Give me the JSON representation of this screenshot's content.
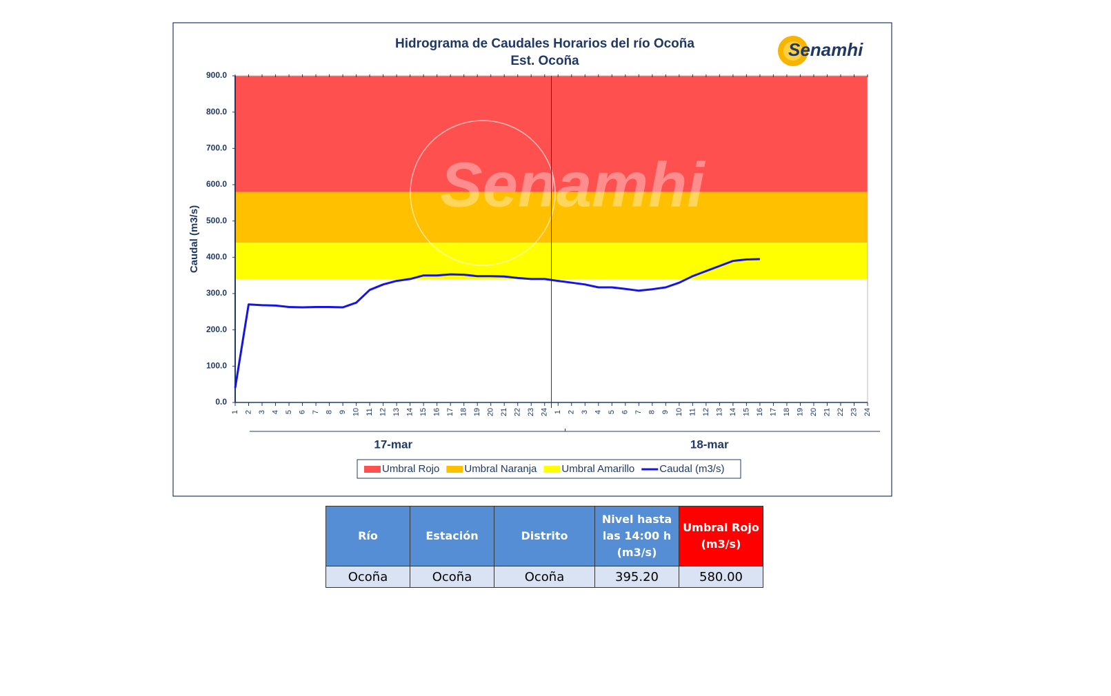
{
  "chart_data": {
    "type": "line",
    "title": "Hidrograma de Caudales Horarios del río Ocoña",
    "subtitle": "Est. Ocoña",
    "logo": "Senamhi",
    "watermark": "Senamhi",
    "ylabel": "Caudal (m3/s)",
    "categories": [
      "1",
      "2",
      "3",
      "4",
      "5",
      "6",
      "7",
      "8",
      "9",
      "10",
      "11",
      "12",
      "13",
      "14",
      "15",
      "16",
      "17",
      "18",
      "19",
      "20",
      "21",
      "22",
      "23",
      "24",
      "1",
      "2",
      "3",
      "4",
      "5",
      "6",
      "7",
      "8",
      "9",
      "10",
      "11",
      "12",
      "13",
      "14",
      "15",
      "16",
      "17",
      "18",
      "19",
      "20",
      "21",
      "22",
      "23",
      "24"
    ],
    "groups": [
      "17-mar",
      "18-mar"
    ],
    "bands": [
      {
        "name": "Umbral Rojo",
        "color": "#ff5050",
        "from": 580,
        "to": 900
      },
      {
        "name": "Umbral Naranja",
        "color": "#ffc000",
        "from": 440,
        "to": 580
      },
      {
        "name": "Umbral Amarillo",
        "color": "#ffff00",
        "from": 340,
        "to": 440
      }
    ],
    "series": [
      {
        "name": "Caudal (m3/s)",
        "color": "#1414e6",
        "values": [
          40,
          270,
          268,
          267,
          263,
          262,
          263,
          263,
          262,
          275,
          310,
          325,
          335,
          340,
          350,
          350,
          353,
          352,
          348,
          348,
          347,
          343,
          340,
          340,
          335,
          330,
          325,
          317,
          317,
          313,
          308,
          312,
          317,
          330,
          348,
          362,
          376,
          390,
          394,
          395,
          null,
          null,
          null,
          null,
          null,
          null,
          null,
          null
        ]
      }
    ],
    "ylim": [
      0,
      900
    ],
    "yticks": [
      {
        "value": 0,
        "label": "0.0"
      },
      {
        "value": 100,
        "label": "100.0"
      },
      {
        "value": 200,
        "label": "200.0"
      },
      {
        "value": 300,
        "label": "300.0"
      },
      {
        "value": 400,
        "label": "400.0"
      },
      {
        "value": 500,
        "label": "500.0"
      },
      {
        "value": 600,
        "label": "600.0"
      },
      {
        "value": 700,
        "label": "700.0"
      },
      {
        "value": 800,
        "label": "800.0"
      },
      {
        "value": 900,
        "label": "900.0"
      }
    ],
    "grid": false,
    "legend": "bottom"
  },
  "table": {
    "header": [
      "Río",
      "Estación",
      "Distrito",
      "Nivel hasta las 14:00 h (m3/s)",
      "Umbral Rojo (m3/s)"
    ],
    "rows": [
      [
        "Ocoña",
        "Ocoña",
        "Ocoña",
        "395.20",
        "580.00"
      ]
    ]
  }
}
